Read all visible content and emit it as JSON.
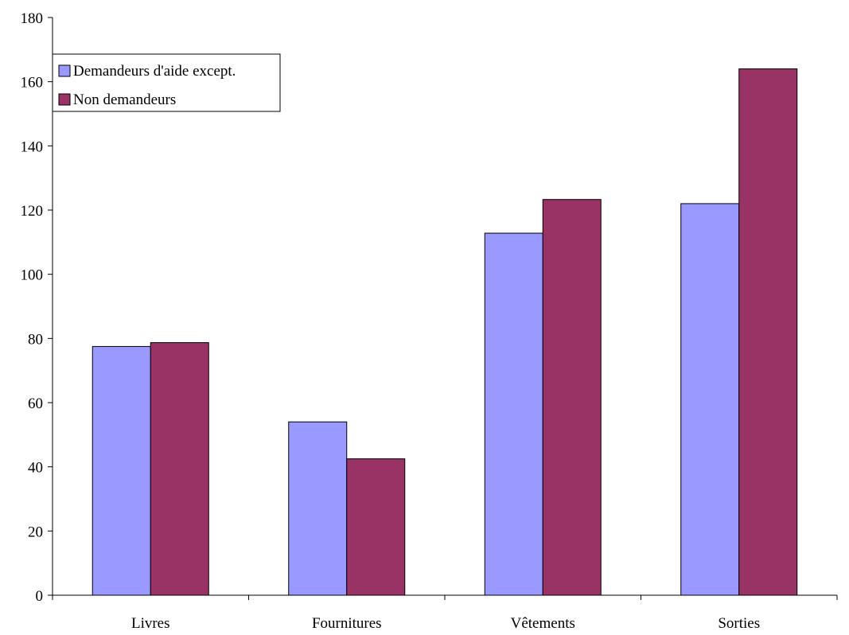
{
  "chart_data": {
    "type": "bar",
    "categories": [
      "Livres",
      "Fournitures",
      "Vêtements",
      "Sorties"
    ],
    "series": [
      {
        "name": "Demandeurs d'aide except.",
        "color": "#9999ff",
        "values": [
          77.5,
          54,
          112.8,
          122
        ]
      },
      {
        "name": "Non demandeurs",
        "color": "#993366",
        "values": [
          78.7,
          42.5,
          123.3,
          164
        ]
      }
    ],
    "title": "",
    "xlabel": "",
    "ylabel": "",
    "ylim": [
      0,
      180
    ],
    "yticks": [
      0,
      20,
      40,
      60,
      80,
      100,
      120,
      140,
      160,
      180
    ],
    "grid": false,
    "legend_position": "top-left"
  }
}
